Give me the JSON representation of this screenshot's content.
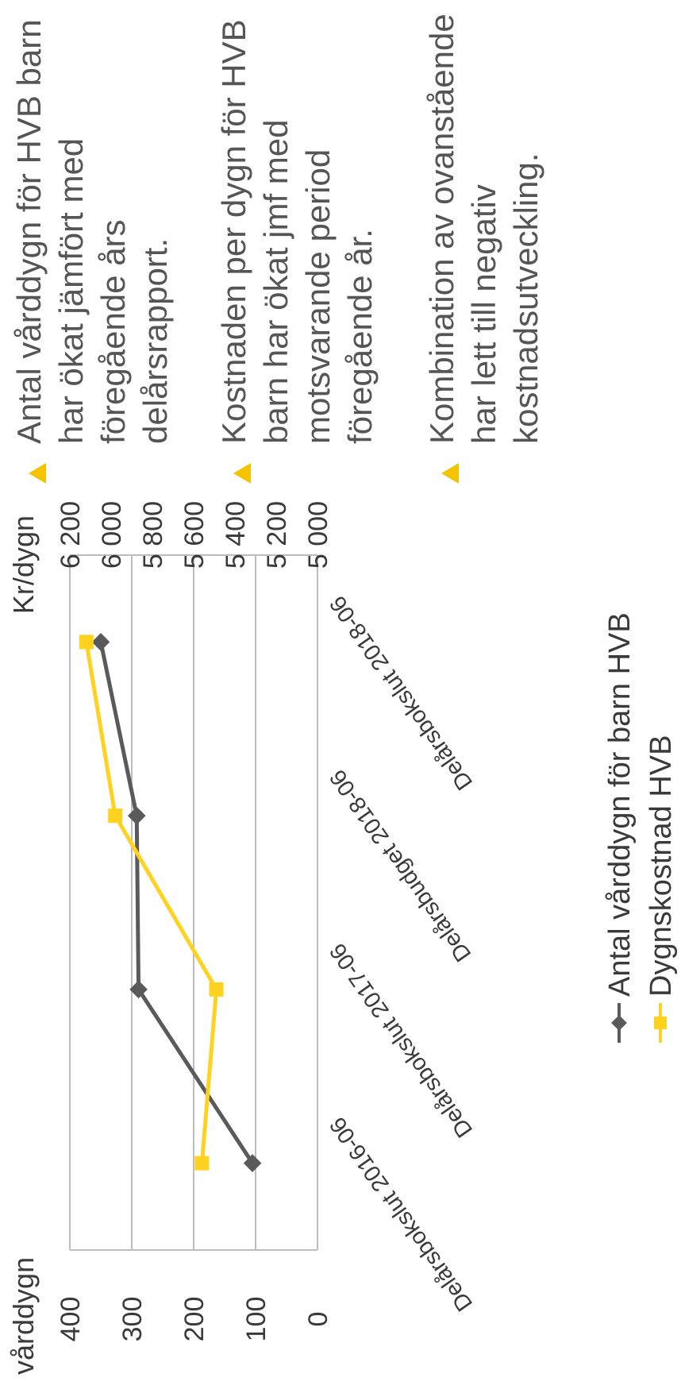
{
  "chart_data": {
    "type": "line",
    "categories": [
      "Delårsbokslut 2016-06",
      "Delårsbokslut 2017-06",
      "Delårsbudget 2018-06",
      "Delårsbokslut 2018-06"
    ],
    "y_left_label": "vårddygn",
    "y_left_ticks": [
      "0",
      "100",
      "200",
      "300",
      "400"
    ],
    "y_left_range": [
      0,
      400
    ],
    "y_right_label": "Kr/dygn",
    "y_right_ticks": [
      "5 000",
      "5 200",
      "5 400",
      "5 600",
      "5 800",
      "6 000",
      "6 200"
    ],
    "y_right_range": [
      5000,
      6200
    ],
    "grid": true,
    "legend_position": "bottom",
    "series": [
      {
        "name": "Antal vårddygn för barn HVB",
        "axis": "left",
        "color": "#5a5a5a",
        "marker": "diamond",
        "values": [
          105,
          289,
          292,
          350
        ]
      },
      {
        "name": "Dygnskostnad HVB",
        "axis": "right",
        "color": "#ffd21f",
        "marker": "square",
        "values": [
          5560,
          5490,
          5980,
          6120
        ]
      }
    ]
  },
  "bullets": [
    {
      "lines": [
        "Antal vårddygn för HVB barn",
        "har ökat jämfört med",
        "föregående års",
        "delårsrapport."
      ]
    },
    {
      "lines": [
        "Kostnaden per dygn för HVB",
        "barn har ökat jmf med",
        "motsvarande period",
        "föregående år."
      ]
    },
    {
      "lines": [
        "Kombination av ovanstående",
        "har lett till negativ",
        "kostnadsutveckling."
      ]
    }
  ],
  "colors": {
    "bullet_marker": "#f5c400",
    "grid": "#bdbdbd",
    "text": "#3a3a3a"
  }
}
